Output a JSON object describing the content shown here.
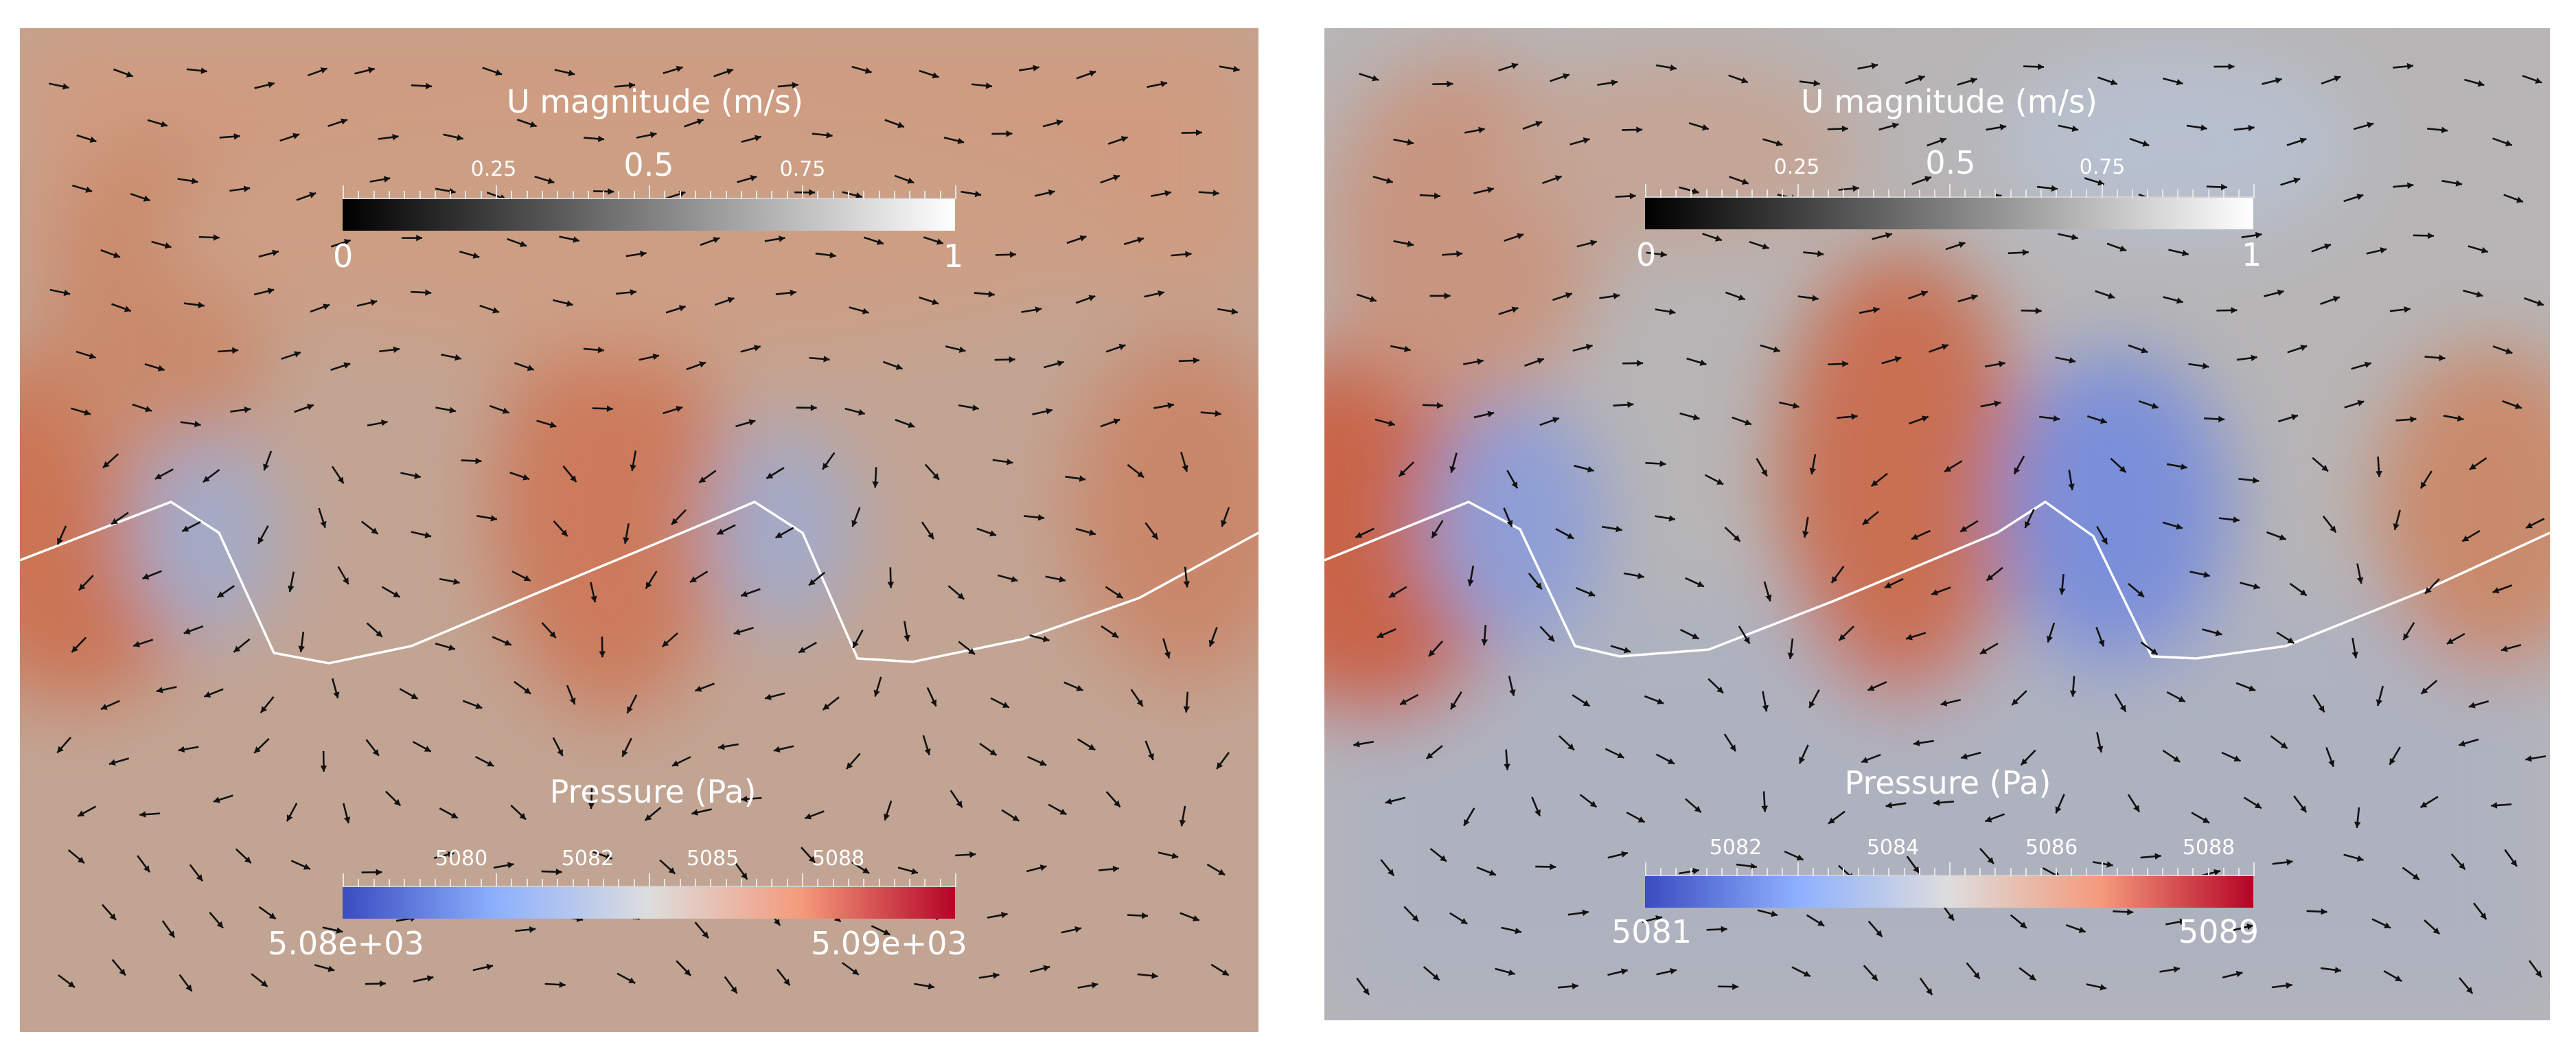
{
  "panels": [
    {
      "id": "left",
      "velocity_legend": {
        "title": "U magnitude (m/s)",
        "min_label": "0",
        "max_label": "1",
        "tick_labels": [
          "0.25",
          "0.5",
          "0.75"
        ],
        "colors": [
          "#000000",
          "#ffffff"
        ]
      },
      "pressure_legend": {
        "title": "Pressure (Pa)",
        "min_label": "5.08e+03",
        "max_label": "5.09e+03",
        "tick_labels": [
          "5080",
          "5082",
          "5085",
          "5088"
        ],
        "colors": [
          "#3a4cc0",
          "#8db0fe",
          "#dddddd",
          "#f49a7b",
          "#b40426"
        ]
      }
    },
    {
      "id": "right",
      "velocity_legend": {
        "title": "U magnitude (m/s)",
        "min_label": "0",
        "max_label": "1",
        "tick_labels": [
          "0.25",
          "0.5",
          "0.75"
        ],
        "colors": [
          "#000000",
          "#ffffff"
        ]
      },
      "pressure_legend": {
        "title": "Pressure (Pa)",
        "min_label": "5081",
        "max_label": "5089",
        "tick_labels": [
          "5082",
          "5084",
          "5086",
          "5088"
        ],
        "colors": [
          "#3a4cc0",
          "#8db0fe",
          "#dddddd",
          "#f49a7b",
          "#b40426"
        ]
      }
    }
  ]
}
